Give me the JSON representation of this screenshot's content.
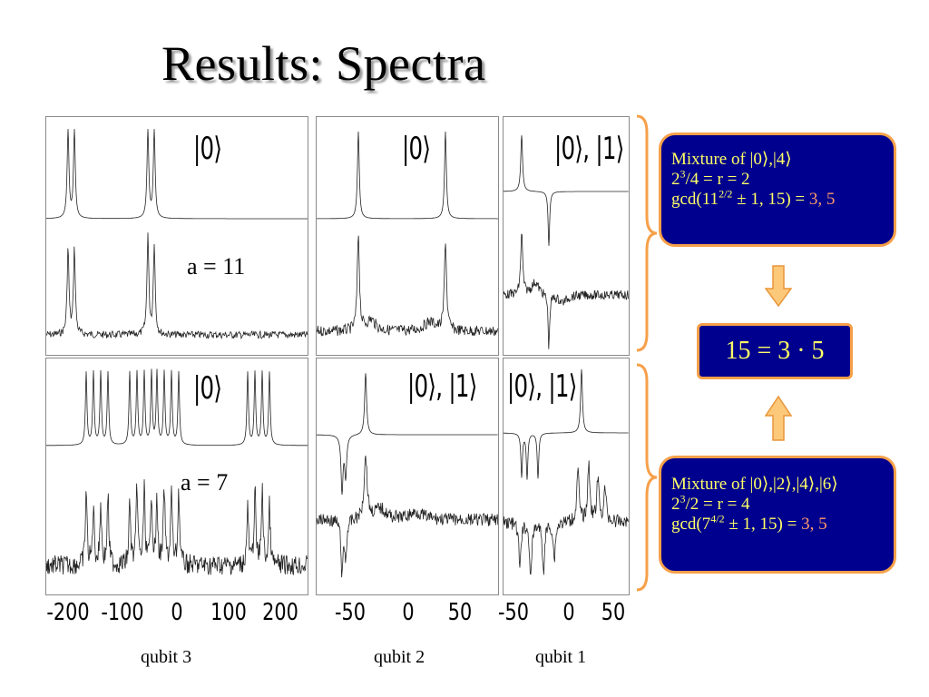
{
  "title": "Results: Spectra",
  "panels": {
    "top_left_ket": "|0⟩",
    "top_mid_ket": "|0⟩",
    "top_right_ket": "|0⟩, |1⟩",
    "bot_left_ket": "|0⟩",
    "bot_mid_ket": "|0⟩, |1⟩",
    "bot_right_ket": "|0⟩, |1⟩",
    "a_top": "a = 11",
    "a_bottom": "a = 7"
  },
  "axes": {
    "qubit3_ticks": [
      "-200",
      "-100",
      "0",
      "100",
      "200"
    ],
    "qubit2_ticks": [
      "-50",
      "0",
      "50"
    ],
    "qubit1_ticks": [
      "-50",
      "0",
      "50"
    ]
  },
  "qubit_labels": {
    "q3": "qubit 3",
    "q2": "qubit 2",
    "q1": "qubit 1"
  },
  "box_a11": {
    "line1": "Mixture of |0⟩,|4⟩",
    "line2_pre": "2",
    "line2_sup": "3",
    "line2_post": "/4 = r = 2",
    "line3_pre": "gcd(11",
    "line3_sup": "2/2",
    "line3_post": " ± 1, 15) = ",
    "line3_hl": "3, 5"
  },
  "box_a7": {
    "line1": "Mixture of |0⟩,|2⟩,|4⟩,|6⟩",
    "line2_pre": "2",
    "line2_sup": "3",
    "line2_post": "/2 = r = 4",
    "line3_pre": "gcd(7",
    "line3_sup": "4/2",
    "line3_post": " ± 1, 15) = ",
    "line3_hl": "3, 5"
  },
  "result": "15 = 3 · 5",
  "colors": {
    "box_fill": "#00008e",
    "box_border": "#f6a04a",
    "box_text": "#ffff66",
    "highlight": "#ff9a6a",
    "arrow_fill": "#fcc97a"
  }
}
